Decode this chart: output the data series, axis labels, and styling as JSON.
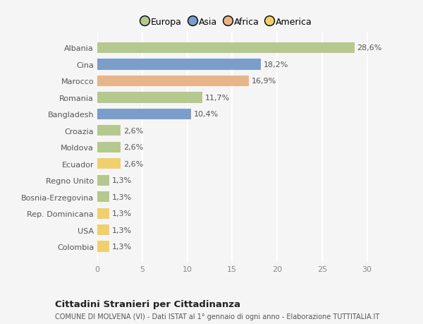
{
  "categories": [
    "Albania",
    "Cina",
    "Marocco",
    "Romania",
    "Bangladesh",
    "Croazia",
    "Moldova",
    "Ecuador",
    "Regno Unito",
    "Bosnia-Erzegovina",
    "Rep. Dominicana",
    "USA",
    "Colombia"
  ],
  "values": [
    28.6,
    18.2,
    16.9,
    11.7,
    10.4,
    2.6,
    2.6,
    2.6,
    1.3,
    1.3,
    1.3,
    1.3,
    1.3
  ],
  "labels": [
    "28,6%",
    "18,2%",
    "16,9%",
    "11,7%",
    "10,4%",
    "2,6%",
    "2,6%",
    "2,6%",
    "1,3%",
    "1,3%",
    "1,3%",
    "1,3%",
    "1,3%"
  ],
  "continent": [
    "Europa",
    "Asia",
    "Africa",
    "Europa",
    "Asia",
    "Europa",
    "Europa",
    "America",
    "Europa",
    "Europa",
    "America",
    "America",
    "America"
  ],
  "colors": {
    "Europa": "#b5c98e",
    "Asia": "#7b9dc9",
    "Africa": "#e8b48a",
    "America": "#f0cf6e"
  },
  "legend_order": [
    "Europa",
    "Asia",
    "Africa",
    "America"
  ],
  "legend_colors": [
    "#b5c98e",
    "#7b9dc9",
    "#e8b48a",
    "#f0cf6e"
  ],
  "xlim": [
    0,
    32
  ],
  "xticks": [
    0,
    5,
    10,
    15,
    20,
    25,
    30
  ],
  "title": "Cittadini Stranieri per Cittadinanza",
  "subtitle": "COMUNE DI MOLVENA (VI) - Dati ISTAT al 1° gennaio di ogni anno - Elaborazione TUTTITALIA.IT",
  "background_color": "#f5f5f5",
  "grid_color": "#ffffff",
  "bar_height": 0.65,
  "label_fontsize": 8,
  "ytick_fontsize": 8,
  "xtick_fontsize": 8
}
